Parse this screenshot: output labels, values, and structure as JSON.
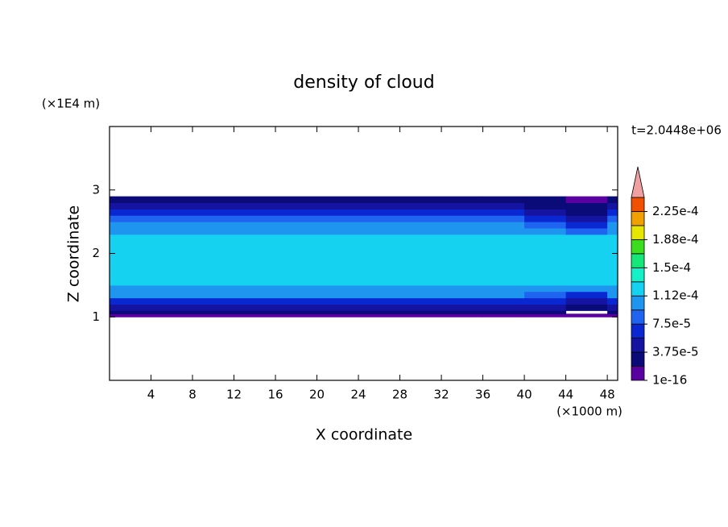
{
  "chart_data": {
    "type": "contour",
    "title": "density of cloud",
    "y_unit": "(×1E4 m)",
    "x_unit": "(×1000 m)",
    "time_label": "t=2.0448e+06",
    "xlabel": "X coordinate",
    "ylabel": "Z coordinate",
    "xlim": [
      0,
      49
    ],
    "ylim": [
      0,
      4
    ],
    "xticks": [
      4,
      8,
      12,
      16,
      20,
      24,
      28,
      32,
      36,
      40,
      44,
      48
    ],
    "yticks": [
      1,
      2,
      3
    ],
    "field": {
      "x_edges": [
        0,
        36,
        40,
        44,
        48,
        49
      ],
      "z_edges": [
        1.0,
        1.05,
        1.1,
        1.2,
        1.3,
        1.4,
        1.5,
        2.3,
        2.4,
        2.5,
        2.6,
        2.7,
        2.8,
        2.9
      ],
      "values": [
        [
          1e-05,
          1e-05,
          1e-05,
          1e-05,
          1e-05
        ],
        [
          2.5e-05,
          2.5e-05,
          2.5e-05,
          null,
          2.5e-05
        ],
        [
          4.5e-05,
          4.5e-05,
          4.5e-05,
          2.5e-05,
          4.5e-05
        ],
        [
          7e-05,
          7e-05,
          6e-05,
          4.5e-05,
          7e-05
        ],
        [
          9.5e-05,
          9.5e-05,
          8e-05,
          7e-05,
          9.5e-05
        ],
        [
          0.000105,
          0.000105,
          0.000105,
          9.5e-05,
          0.000105
        ],
        [
          0.00012,
          0.00012,
          0.00012,
          0.00012,
          0.00012
        ],
        [
          0.000105,
          0.000105,
          9.5e-05,
          8e-05,
          0.000105
        ],
        [
          9.5e-05,
          9.5e-05,
          8e-05,
          6e-05,
          9.5e-05
        ],
        [
          8e-05,
          8e-05,
          6e-05,
          4.5e-05,
          8e-05
        ],
        [
          6e-05,
          6e-05,
          4.5e-05,
          3e-05,
          6e-05
        ],
        [
          4.5e-05,
          4.5e-05,
          3e-05,
          2.5e-05,
          4.5e-05
        ],
        [
          3e-05,
          3e-05,
          2.5e-05,
          1e-05,
          3e-05
        ]
      ]
    },
    "colorbar": {
      "levels": [
        1e-16,
        1.875e-05,
        3.75e-05,
        5.625e-05,
        7.5e-05,
        9.375e-05,
        0.0001125,
        0.00013125,
        0.00015,
        0.00016875,
        0.0001875,
        0.00020625,
        0.000225,
        0.00024375
      ],
      "colors": [
        "#5a00a0",
        "#0a0a78",
        "#1414a0",
        "#0a28d2",
        "#1e64f0",
        "#1e96f0",
        "#14d2f0",
        "#14f0c8",
        "#14e678",
        "#3cdc1e",
        "#e6e600",
        "#f0a000",
        "#f05000"
      ],
      "extend_color": "#f0a0a0",
      "ticks": [
        {
          "value": 1e-16,
          "label": "1e-16"
        },
        {
          "value": 3.75e-05,
          "label": "3.75e-5"
        },
        {
          "value": 7.5e-05,
          "label": "7.5e-5"
        },
        {
          "value": 0.0001125,
          "label": "1.12e-4"
        },
        {
          "value": 0.00015,
          "label": "1.5e-4"
        },
        {
          "value": 0.0001875,
          "label": "1.88e-4"
        },
        {
          "value": 0.000225,
          "label": "2.25e-4"
        }
      ]
    }
  }
}
